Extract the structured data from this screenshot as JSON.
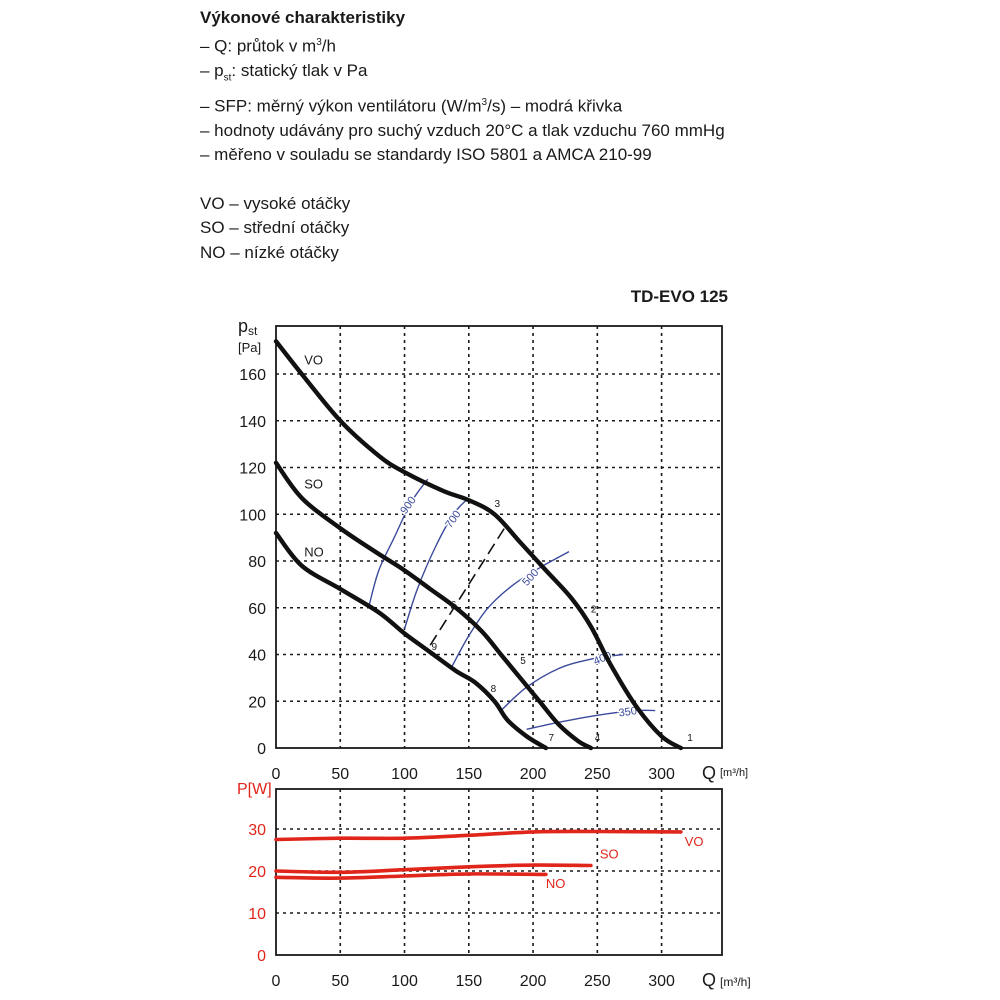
{
  "notes": {
    "heading": "Výkonové charakteristiky",
    "lines": [
      {
        "pre": "– Q: průtok v m",
        "sup": "3",
        "post": "/h"
      },
      {
        "pre": "– p",
        "sub": "st",
        "post": ": statický tlak v Pa"
      },
      {
        "pre": "– SFP: měrný výkon ventilátoru (W/m",
        "sup": "3",
        "post": "/s) – modrá křivka"
      },
      {
        "pre": "– hodnoty udávány pro suchý vzduch 20°C a tlak vzduchu 760 mmHg"
      },
      {
        "pre": "– měřeno v souladu se standardy ISO 5801 a AMCA 210-99"
      }
    ],
    "speeds": [
      "VO – vysoké otáčky",
      "SO – střední otáčky",
      "NO – nízké otáčky"
    ]
  },
  "chart_data": [
    {
      "type": "line",
      "title": "TD-EVO 125",
      "xlabel": "Q",
      "xunit": "[m³/h]",
      "ylabel": "pst",
      "yunit": "[Pa]",
      "xlim": [
        0,
        340
      ],
      "ylim": [
        0,
        175
      ],
      "x_ticks": [
        "0",
        "50",
        "100",
        "150",
        "200",
        "250",
        "300"
      ],
      "y_ticks": [
        "0",
        "20",
        "40",
        "60",
        "80",
        "100",
        "120",
        "140",
        "160"
      ],
      "grid": true,
      "series": [
        {
          "name": "VO",
          "points": [
            [
              0,
              174
            ],
            [
              20,
              160
            ],
            [
              50,
              140
            ],
            [
              80,
              125
            ],
            [
              100,
              118
            ],
            [
              130,
              110
            ],
            [
              150,
              106
            ],
            [
              170,
              100
            ],
            [
              190,
              88
            ],
            [
              210,
              76
            ],
            [
              230,
              64
            ],
            [
              245,
              52
            ],
            [
              260,
              36
            ],
            [
              280,
              18
            ],
            [
              300,
              5
            ],
            [
              315,
              0
            ]
          ]
        },
        {
          "name": "SO",
          "points": [
            [
              0,
              122
            ],
            [
              20,
              107
            ],
            [
              50,
              94
            ],
            [
              80,
              83
            ],
            [
              100,
              76
            ],
            [
              120,
              68
            ],
            [
              140,
              60
            ],
            [
              160,
              50
            ],
            [
              175,
              40
            ],
            [
              190,
              30
            ],
            [
              205,
              20
            ],
            [
              220,
              10
            ],
            [
              235,
              3
            ],
            [
              245,
              0
            ]
          ]
        },
        {
          "name": "NO",
          "points": [
            [
              0,
              92
            ],
            [
              20,
              78
            ],
            [
              50,
              68
            ],
            [
              80,
              58
            ],
            [
              100,
              49
            ],
            [
              120,
              41
            ],
            [
              140,
              33
            ],
            [
              155,
              28
            ],
            [
              170,
              20
            ],
            [
              180,
              12
            ],
            [
              195,
              5
            ],
            [
              210,
              0
            ]
          ]
        }
      ],
      "sfp_curves": [
        {
          "label": "900",
          "points": [
            [
              72,
              60
            ],
            [
              80,
              76
            ],
            [
              92,
              90
            ],
            [
              105,
              105
            ],
            [
              118,
              115
            ]
          ]
        },
        {
          "label": "700",
          "points": [
            [
              100,
              51
            ],
            [
              110,
              68
            ],
            [
              124,
              86
            ],
            [
              138,
              100
            ],
            [
              148,
              106
            ]
          ]
        },
        {
          "label": "500",
          "points": [
            [
              137,
              35
            ],
            [
              150,
              48
            ],
            [
              165,
              60
            ],
            [
              185,
              70
            ],
            [
              208,
              78
            ],
            [
              228,
              84
            ]
          ]
        },
        {
          "label": "400",
          "points": [
            [
              175,
              16
            ],
            [
              195,
              26
            ],
            [
              220,
              34
            ],
            [
              245,
              38
            ],
            [
              270,
              40
            ]
          ]
        },
        {
          "label": "350",
          "points": [
            [
              195,
              8
            ],
            [
              220,
              11
            ],
            [
              250,
              14
            ],
            [
              280,
              16
            ],
            [
              295,
              16
            ]
          ]
        }
      ],
      "speed_line": {
        "points": [
          [
            120,
            44
          ],
          [
            180,
            96
          ]
        ]
      },
      "point_labels": [
        {
          "label": "1",
          "x": 320,
          "y": 3
        },
        {
          "label": "2",
          "x": 245,
          "y": 58
        },
        {
          "label": "3",
          "x": 170,
          "y": 103
        },
        {
          "label": "4",
          "x": 248,
          "y": 3
        },
        {
          "label": "5",
          "x": 190,
          "y": 36
        },
        {
          "label": "6",
          "x": 136,
          "y": 60
        },
        {
          "label": "7",
          "x": 212,
          "y": 3
        },
        {
          "label": "8",
          "x": 167,
          "y": 24
        },
        {
          "label": "9",
          "x": 121,
          "y": 42
        }
      ],
      "series_labels": [
        {
          "label": "VO",
          "x": 22,
          "y": 164
        },
        {
          "label": "SO",
          "x": 22,
          "y": 111
        },
        {
          "label": "NO",
          "x": 22,
          "y": 82
        }
      ]
    },
    {
      "type": "line",
      "title": "",
      "xlabel": "Q",
      "xunit": "[m³/h]",
      "ylabel": "P[W]",
      "xlim": [
        0,
        340
      ],
      "ylim": [
        0,
        40
      ],
      "x_ticks": [
        "0",
        "50",
        "100",
        "150",
        "200",
        "250",
        "300"
      ],
      "y_ticks": [
        "0",
        "10",
        "20",
        "30"
      ],
      "grid": true,
      "series": [
        {
          "name": "VO",
          "points": [
            [
              0,
              27.5
            ],
            [
              50,
              27.8
            ],
            [
              100,
              27.8
            ],
            [
              150,
              28.5
            ],
            [
              200,
              29.3
            ],
            [
              250,
              29.4
            ],
            [
              315,
              29.3
            ]
          ]
        },
        {
          "name": "SO",
          "points": [
            [
              0,
              20
            ],
            [
              50,
              19.7
            ],
            [
              100,
              20.3
            ],
            [
              150,
              21
            ],
            [
              200,
              21.4
            ],
            [
              245,
              21.3
            ]
          ]
        },
        {
          "name": "NO",
          "points": [
            [
              0,
              18.5
            ],
            [
              50,
              18.3
            ],
            [
              100,
              18.8
            ],
            [
              150,
              19.3
            ],
            [
              210,
              19.2
            ]
          ]
        }
      ],
      "series_labels": [
        {
          "label": "VO",
          "x": 318,
          "y": 26
        },
        {
          "label": "SO",
          "x": 252,
          "y": 23
        },
        {
          "label": "NO",
          "x": 210,
          "y": 16
        }
      ],
      "colors": {
        "power": "#e0251b"
      }
    }
  ]
}
